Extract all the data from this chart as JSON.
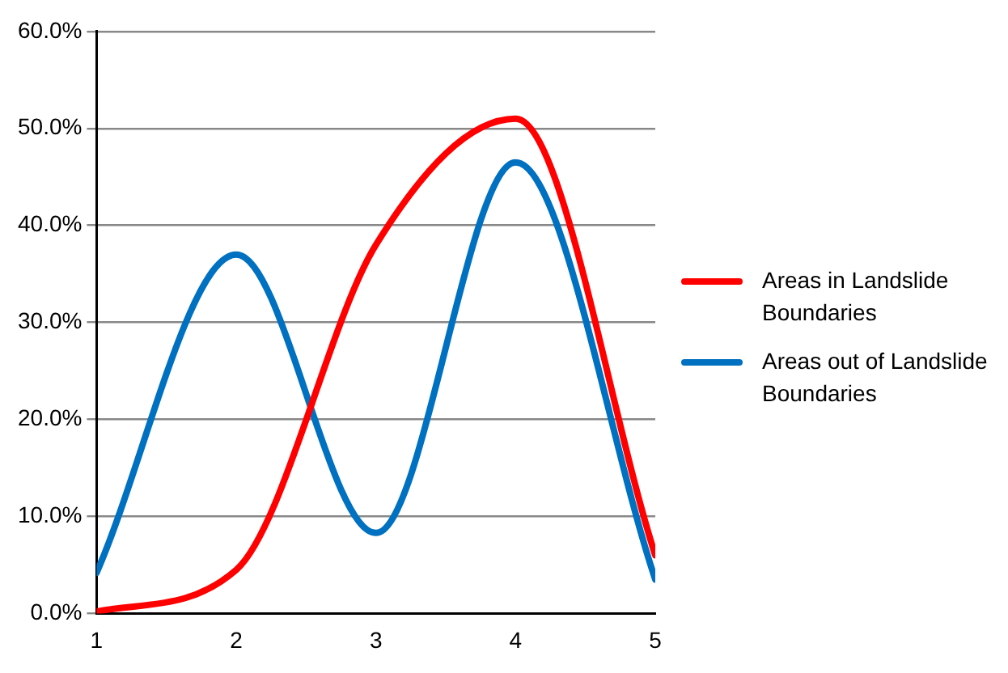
{
  "chart_data": {
    "type": "line",
    "x": [
      1,
      2,
      3,
      4,
      5
    ],
    "series": [
      {
        "name": "Areas in Landslide Boundaries",
        "color": "#ff0000",
        "values": [
          0.2,
          4.5,
          38,
          51,
          6
        ]
      },
      {
        "name": "Areas out of Landslide Boundaries",
        "color": "#0070c0",
        "values": [
          4.2,
          37,
          8.3,
          46.5,
          3.5
        ]
      }
    ],
    "xlim": [
      1,
      5
    ],
    "xticks": [
      1,
      2,
      3,
      4,
      5
    ],
    "ylim": [
      0,
      60
    ],
    "yticks": [
      {
        "value": 0,
        "label": "0.0%"
      },
      {
        "value": 10,
        "label": "10.0%"
      },
      {
        "value": 20,
        "label": "20.0%"
      },
      {
        "value": 30,
        "label": "30.0%"
      },
      {
        "value": 40,
        "label": "40.0%"
      },
      {
        "value": 50,
        "label": "50.0%"
      },
      {
        "value": 60,
        "label": "60.0%"
      }
    ],
    "grid": "y",
    "legend": "right",
    "marker": "none",
    "line_style": "solid"
  }
}
